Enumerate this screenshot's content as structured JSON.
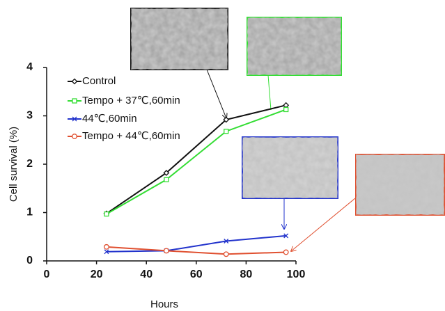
{
  "chart_data": {
    "type": "line",
    "xlabel": "Hours",
    "ylabel": "Cell survival  (%)",
    "x": [
      24,
      48,
      72,
      96
    ],
    "xlim": [
      0,
      100
    ],
    "xticks": [
      0,
      20,
      40,
      60,
      80,
      100
    ],
    "ylim": [
      0,
      4
    ],
    "yticks": [
      0,
      1,
      2,
      3,
      4
    ],
    "legend": "upper left",
    "series": [
      {
        "name": "Control",
        "color": "#111111",
        "marker": "diamond",
        "values": [
          0.98,
          1.82,
          2.92,
          3.22
        ]
      },
      {
        "name": "Tempo + 37℃,60min",
        "color": "#33dd33",
        "marker": "square",
        "values": [
          0.97,
          1.68,
          2.68,
          3.13
        ]
      },
      {
        "name": "44℃,60min",
        "color": "#2233cc",
        "marker": "x",
        "values": [
          0.19,
          0.21,
          0.41,
          0.52
        ]
      },
      {
        "name": "Tempo + 44℃,60min",
        "color": "#e05030",
        "marker": "circle",
        "values": [
          0.29,
          0.21,
          0.14,
          0.18
        ]
      }
    ]
  }
}
